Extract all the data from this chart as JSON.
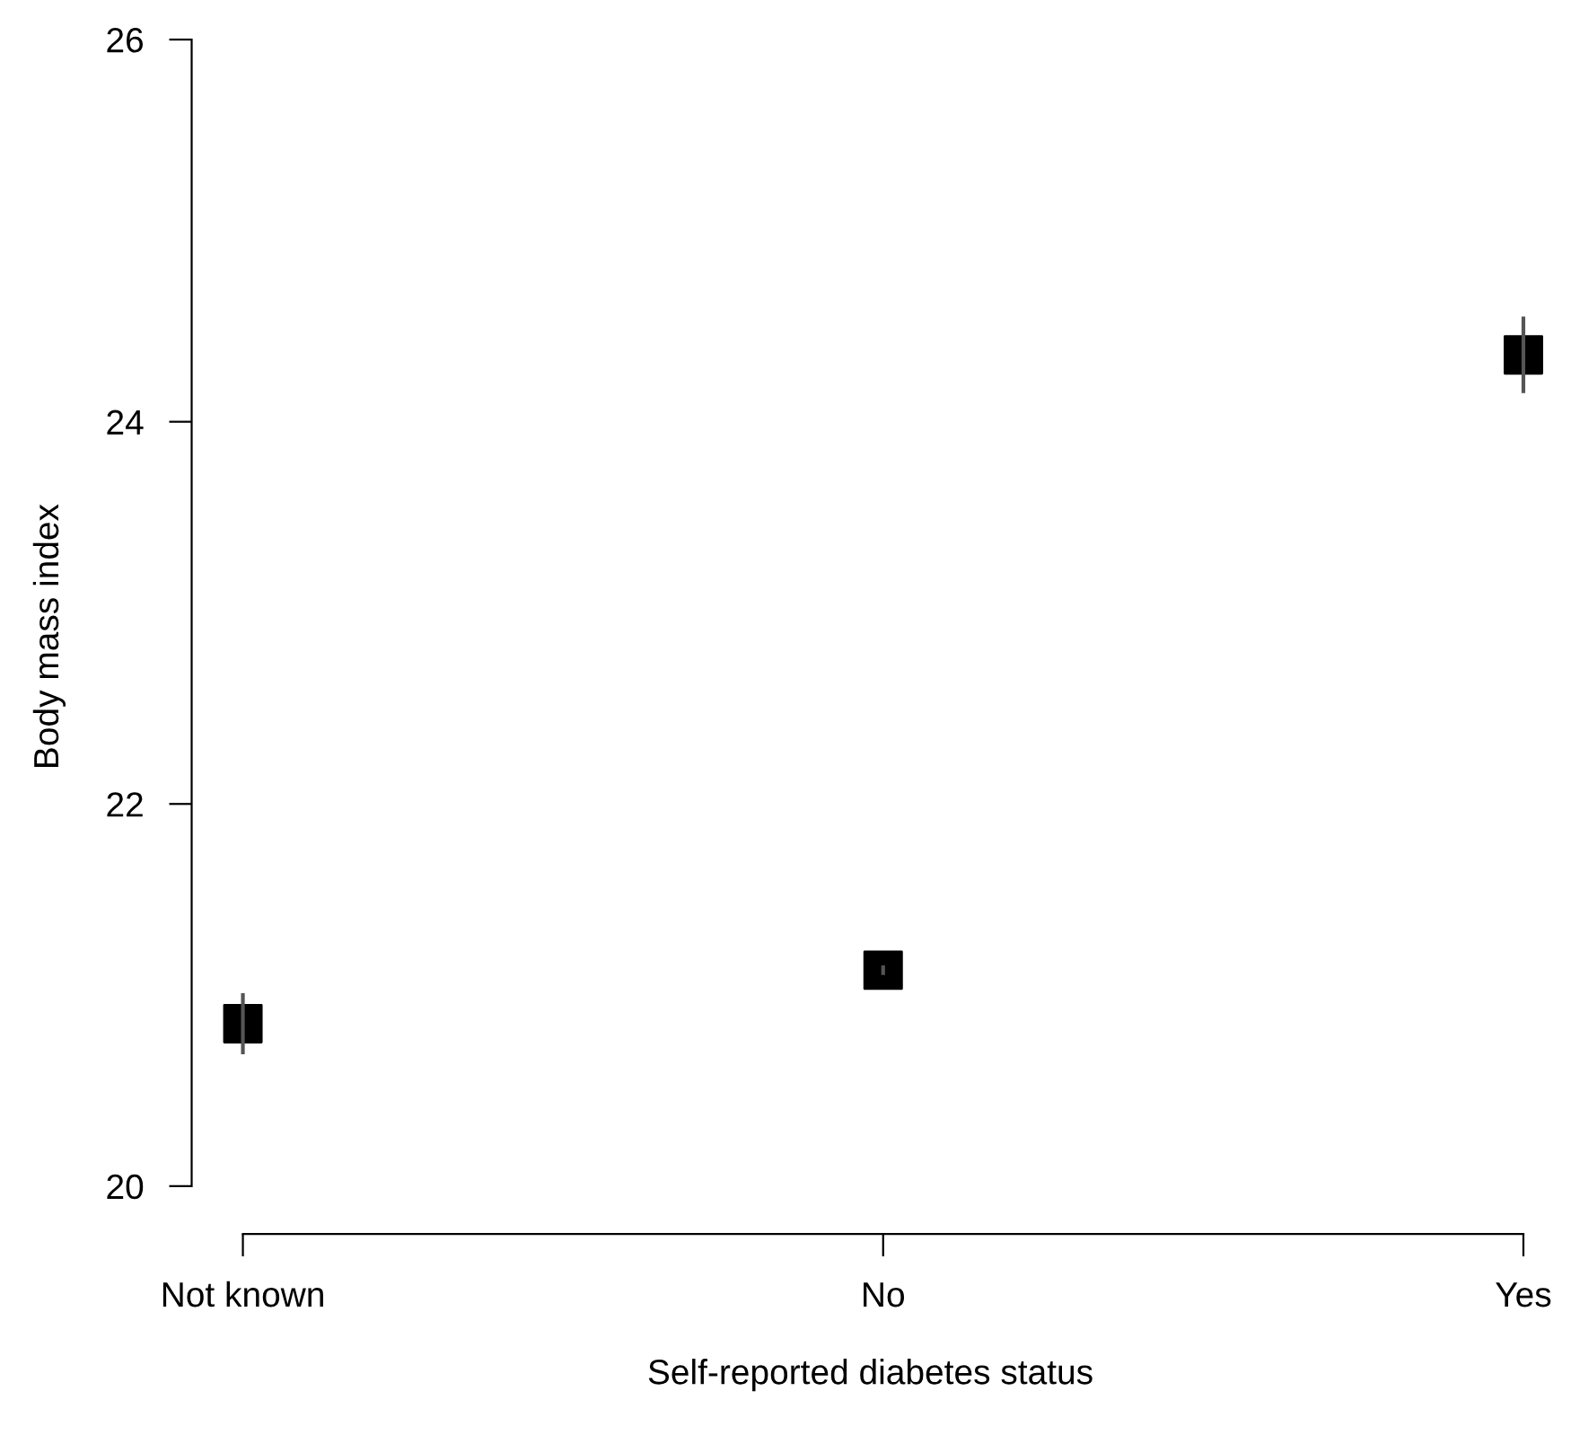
{
  "chart_data": {
    "type": "scatter",
    "xlabel": "Self-reported diabetes status",
    "ylabel": "Body mass index",
    "categories": [
      "Not known",
      "No",
      "Yes"
    ],
    "values": [
      20.85,
      21.13,
      24.35
    ],
    "errors": [
      0.16,
      0.025,
      0.2
    ],
    "color": "#000000",
    "marker": "square",
    "ylim": [
      19.75,
      26
    ],
    "yticks": [
      20,
      22,
      24,
      26
    ],
    "grid": false,
    "legend": false
  }
}
